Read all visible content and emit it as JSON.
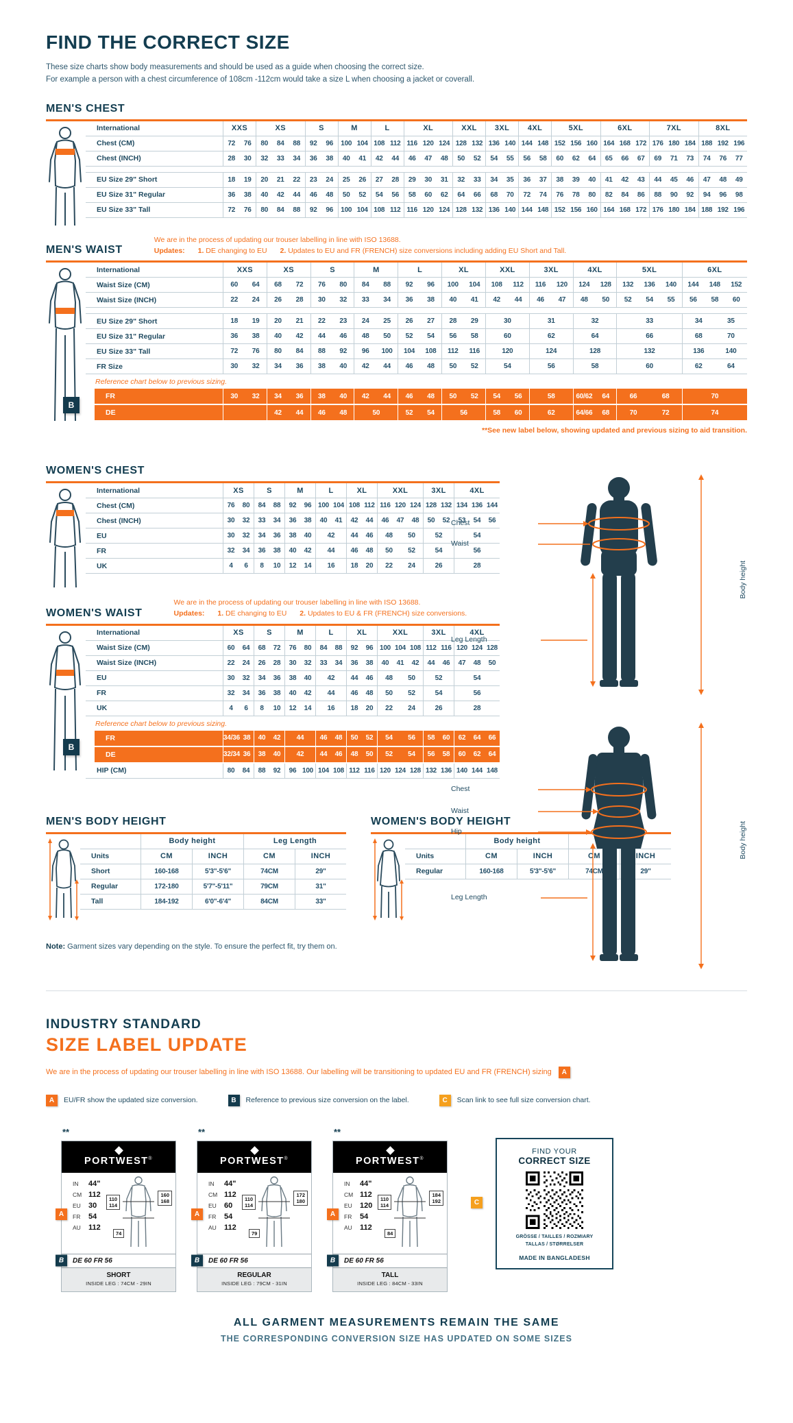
{
  "page": {
    "title": "FIND THE CORRECT SIZE",
    "intro1": "These size charts show body measurements and should be used as a guide when choosing the correct size.",
    "intro2": "For example a person with a chest circumference of 108cm -112cm would take a size L when choosing a jacket or coverall.",
    "note_label": "Note:",
    "note_text": " Garment sizes vary depending on the style. To ensure the perfect fit, try them on."
  },
  "colors": {
    "orange": "#f4701d",
    "navy": "#133d50",
    "amber": "#f5a01e"
  },
  "tables": {
    "mens_chest": {
      "title": "MEN'S CHEST",
      "spans": [
        2,
        3,
        2,
        2,
        2,
        3,
        2,
        2,
        2,
        3,
        3,
        3,
        3
      ],
      "header_rows": [
        {
          "label": "International",
          "cells": [
            "XXS",
            "XS",
            "S",
            "M",
            "L",
            "XL",
            "XXL",
            "3XL",
            "4XL",
            "5XL",
            "6XL",
            "7XL",
            "8XL"
          ]
        }
      ],
      "rows": [
        {
          "label": "Chest (CM)",
          "cells": [
            "72 76",
            "80 84 88",
            "92 96",
            "100 104",
            "108 112",
            "116 120 124",
            "128 132",
            "136 140",
            "144 148",
            "152 156 160",
            "164 168 172",
            "176 180 184",
            "188 192 196"
          ]
        },
        {
          "label": "Chest (INCH)",
          "cells": [
            "28 30",
            "32 33 34",
            "36 38",
            "40 41",
            "42 44",
            "46 47 48",
            "50 52",
            "54 55",
            "56 58",
            "60 62 64",
            "65 66 67",
            "69 71 73",
            "74 76 77"
          ]
        },
        {
          "gap": true
        },
        {
          "label": "EU Size 29\" Short",
          "cells": [
            "18 19",
            "20 21 22",
            "23 24",
            "25 26",
            "27 28",
            "29 30 31",
            "32 33",
            "34 35",
            "36 37",
            "38 39 40",
            "41 42 43",
            "44 45 46",
            "47 48 49"
          ]
        },
        {
          "label": "EU Size 31\" Regular",
          "cells": [
            "36 38",
            "40 42 44",
            "46 48",
            "50 52",
            "54 56",
            "58 60 62",
            "64 66",
            "68 70",
            "72 74",
            "76 78 80",
            "82 84 86",
            "88 90 92",
            "94 96 98"
          ]
        },
        {
          "label": "EU Size 33\" Tall",
          "cells": [
            "72 76",
            "80 84 88",
            "92 96",
            "100 104",
            "108 112",
            "116 120 124",
            "128 132",
            "136 140",
            "144 148",
            "152 156 160",
            "164 168 172",
            "176 180 184",
            "188 192 196"
          ]
        }
      ]
    },
    "mens_waist": {
      "title": "MEN'S WAIST",
      "note1": "We are in the process of updating our trouser labelling in line with ISO 13688.",
      "updates_label": "Updates:",
      "u1n": "1.",
      "u1": "DE changing to EU",
      "u2n": "2.",
      "u2": "Updates to EU and FR (FRENCH) size conversions including adding EU Short and Tall.",
      "spans": [
        2,
        2,
        2,
        2,
        2,
        2,
        2,
        2,
        2,
        3,
        3
      ],
      "header_rows": [
        {
          "label": "International",
          "cells": [
            "XXS",
            "XS",
            "S",
            "M",
            "L",
            "XL",
            "XXL",
            "3XL",
            "4XL",
            "5XL",
            "6XL"
          ]
        }
      ],
      "rows": [
        {
          "label": "Waist Size (CM)",
          "cells": [
            "60 64",
            "68 72",
            "76 80",
            "84 88",
            "92 96",
            "100 104",
            "108 112",
            "116 120",
            "124 128",
            "132 136 140",
            "144 148 152"
          ]
        },
        {
          "label": "Waist Size (INCH)",
          "cells": [
            "22 24",
            "26 28",
            "30 32",
            "33 34",
            "36 38",
            "40 41",
            "42 44",
            "46 47",
            "48 50",
            "52 54 55",
            "56 58 60"
          ]
        },
        {
          "gap": true
        },
        {
          "label": "EU Size 29\" Short",
          "cells": [
            "18 19",
            "20 21",
            "22 23",
            "24 25",
            "26 27",
            "28 29",
            "30",
            "31",
            "32",
            "33",
            "34 35"
          ]
        },
        {
          "label": "EU Size 31\" Regular",
          "cells": [
            "36 38",
            "40 42",
            "44 46",
            "48 50",
            "52 54",
            "56 58",
            "60",
            "62",
            "64",
            "66",
            "68 70"
          ]
        },
        {
          "label": "EU Size 33\" Tall",
          "cells": [
            "72 76",
            "80 84",
            "88 92",
            "96 100",
            "104 108",
            "112 116",
            "120",
            "124",
            "128",
            "132",
            "136 140"
          ]
        },
        {
          "label": "FR Size",
          "cells": [
            "30 32",
            "34 36",
            "38 40",
            "42 44",
            "46 48",
            "50 52",
            "54",
            "56",
            "58",
            "60",
            "62 64"
          ]
        },
        {
          "note": "Reference chart below to previous sizing."
        },
        {
          "label": "FR",
          "variant": "orange",
          "badge": "B",
          "cells": [
            "30 32",
            "34 36",
            "38 40",
            "42 44",
            "46 48",
            "50 52",
            "54 56",
            "58",
            "60/62 64",
            "66 68",
            "70"
          ]
        },
        {
          "label": "DE",
          "variant": "orange",
          "cells": [
            "",
            "42 44",
            "46 48",
            "50",
            "52 54",
            "56",
            "58 60",
            "62",
            "64/66 68",
            "70 72",
            "74"
          ]
        },
        {
          "footnote": "**See new label below, showing updated and previous sizing to aid transition."
        }
      ]
    },
    "womens_chest": {
      "title": "WOMEN'S CHEST",
      "spans": [
        2,
        2,
        2,
        2,
        2,
        3,
        2,
        3
      ],
      "header_rows": [
        {
          "label": "International",
          "cells": [
            "XS",
            "S",
            "M",
            "L",
            "XL",
            "XXL",
            "3XL",
            "4XL"
          ]
        }
      ],
      "rows": [
        {
          "label": "Chest (CM)",
          "cells": [
            "76 80",
            "84 88",
            "92 96",
            "100 104",
            "108 112",
            "116 120 124",
            "128 132",
            "134 136 144"
          ]
        },
        {
          "label": "Chest (INCH)",
          "cells": [
            "30 32",
            "33 34",
            "36 38",
            "40 41",
            "42 44",
            "46 47 48",
            "50 52",
            "53 54 56"
          ]
        },
        {
          "label": "EU",
          "cells": [
            "30 32",
            "34 36",
            "38 40",
            "42",
            "44 46",
            "48 50",
            "52",
            "54"
          ]
        },
        {
          "label": "FR",
          "cells": [
            "32 34",
            "36 38",
            "40 42",
            "44",
            "46 48",
            "50 52",
            "54",
            "56"
          ]
        },
        {
          "label": "UK",
          "cells": [
            "4 6",
            "8 10",
            "12 14",
            "16",
            "18 20",
            "22 24",
            "26",
            "28"
          ]
        }
      ]
    },
    "womens_waist": {
      "title": "WOMEN'S WAIST",
      "note1": "We are in the process of updating our trouser labelling in line with ISO 13688.",
      "updates_label": "Updates:",
      "u1n": "1.",
      "u1": "DE changing to EU",
      "u2n": "2.",
      "u2": "Updates to EU & FR (FRENCH) size conversions.",
      "spans": [
        2,
        2,
        2,
        2,
        2,
        3,
        2,
        3
      ],
      "header_rows": [
        {
          "label": "International",
          "cells": [
            "XS",
            "S",
            "M",
            "L",
            "XL",
            "XXL",
            "3XL",
            "4XL"
          ]
        }
      ],
      "rows": [
        {
          "label": "Waist Size (CM)",
          "cells": [
            "60 64",
            "68 72",
            "76 80",
            "84 88",
            "92 96",
            "100 104 108",
            "112 116",
            "120 124 128"
          ]
        },
        {
          "label": "Waist Size (INCH)",
          "cells": [
            "22 24",
            "26 28",
            "30 32",
            "33 34",
            "36 38",
            "40 41 42",
            "44 46",
            "47 48 50"
          ]
        },
        {
          "label": "EU",
          "cells": [
            "30 32",
            "34 36",
            "38 40",
            "42",
            "44 46",
            "48 50",
            "52",
            "54"
          ]
        },
        {
          "label": "FR",
          "cells": [
            "32 34",
            "36 38",
            "40 42",
            "44",
            "46 48",
            "50 52",
            "54",
            "56"
          ]
        },
        {
          "label": "UK",
          "cells": [
            "4 6",
            "8 10",
            "12 14",
            "16",
            "18 20",
            "22 24",
            "26",
            "28"
          ]
        },
        {
          "note": "Reference chart below to previous sizing."
        },
        {
          "label": "FR",
          "variant": "orange",
          "badge": "B",
          "cells": [
            "34/36 38",
            "40 42",
            "44",
            "46 48",
            "50 52",
            "54 56",
            "58 60",
            "62 64 66"
          ]
        },
        {
          "label": "DE",
          "variant": "orange",
          "cells": [
            "32/34 36",
            "38 40",
            "42",
            "44 46",
            "48 50",
            "52 54",
            "56 58",
            "60 62 64"
          ]
        },
        {
          "label": "HIP (CM)",
          "cells": [
            "80 84",
            "88 92",
            "96 100",
            "104 108",
            "112 116",
            "120 124 128",
            "132 136",
            "140 144 148"
          ]
        }
      ]
    },
    "mens_body_height": {
      "title": "MEN'S BODY HEIGHT",
      "spans": [
        1,
        1,
        1,
        1
      ],
      "header_rows": [
        {
          "label": "",
          "cells": [
            "Body height",
            "Leg Length"
          ],
          "spans": [
            2,
            2
          ],
          "nosplit": true
        },
        {
          "label": "Units",
          "cells": [
            "CM",
            "INCH",
            "CM",
            "INCH"
          ]
        }
      ],
      "rows": [
        {
          "label": "Short",
          "cells": [
            "160-168",
            "5'3\"-5'6\"",
            "74CM",
            "29\""
          ],
          "nosplit": true
        },
        {
          "label": "Regular",
          "cells": [
            "172-180",
            "5'7\"-5'11\"",
            "79CM",
            "31\""
          ],
          "nosplit": true
        },
        {
          "label": "Tall",
          "cells": [
            "184-192",
            "6'0\"-6'4\"",
            "84CM",
            "33\""
          ],
          "nosplit": true
        }
      ]
    },
    "womens_body_height": {
      "title": "WOMEN'S BODY HEIGHT",
      "spans": [
        1,
        1,
        1,
        1
      ],
      "header_rows": [
        {
          "label": "",
          "cells": [
            "Body height",
            "Leg Length"
          ],
          "spans": [
            2,
            2
          ],
          "nosplit": true
        },
        {
          "label": "Units",
          "cells": [
            "CM",
            "INCH",
            "CM",
            "INCH"
          ]
        }
      ],
      "rows": [
        {
          "label": "Regular",
          "cells": [
            "160-168",
            "5'3\"-5'6\"",
            "74CM",
            "29\""
          ],
          "nosplit": true
        }
      ]
    }
  },
  "figures": {
    "men": {
      "chest": "Chest",
      "waist": "Waist",
      "leg": "Leg Length",
      "height": "Body height"
    },
    "women": {
      "chest": "Chest",
      "waist": "Waist",
      "hip": "Hip",
      "leg": "Leg Length",
      "height": "Body height"
    }
  },
  "industry": {
    "kicker": "INDUSTRY STANDARD",
    "title": "SIZE LABEL UPDATE",
    "para": "We are in the process of updating our trouser labelling in line with ISO 13688. Our labelling will be transitioning to updated EU and FR (FRENCH) sizing",
    "para_badge": "A"
  },
  "legend": [
    {
      "badge": "A",
      "text": "EU/FR show the updated size conversion."
    },
    {
      "badge": "B",
      "text": "Reference to previous size conversion on the label."
    },
    {
      "badge": "C",
      "text": "Scan link to see full size conversion chart."
    }
  ],
  "cards": [
    {
      "marks": "**",
      "brand": "PORTWEST",
      "reg": "®",
      "badge_a": "A",
      "badge_b": "B",
      "m1l": "IN",
      "m1v": "44\"",
      "m2l": "CM",
      "m2v": "112",
      "m3l": "EU",
      "m3v": "30",
      "m4l": "FR",
      "m4v": "54",
      "m5l": "AU",
      "m5v": "112",
      "hip1": "110",
      "hip2": "114",
      "h1": "160",
      "h2": "168",
      "leg": "74",
      "prev": "DE 60 FR 56",
      "fit": "SHORT",
      "inside": "INSIDE LEG : 74CM - 29IN"
    },
    {
      "marks": "**",
      "brand": "PORTWEST",
      "reg": "®",
      "badge_a": "A",
      "badge_b": "B",
      "m1l": "IN",
      "m1v": "44\"",
      "m2l": "CM",
      "m2v": "112",
      "m3l": "EU",
      "m3v": "60",
      "m4l": "FR",
      "m4v": "54",
      "m5l": "AU",
      "m5v": "112",
      "hip1": "110",
      "hip2": "114",
      "h1": "172",
      "h2": "180",
      "leg": "79",
      "prev": "DE 60 FR 56",
      "fit": "REGULAR",
      "inside": "INSIDE LEG : 79CM - 31IN"
    },
    {
      "marks": "**",
      "brand": "PORTWEST",
      "reg": "®",
      "badge_a": "A",
      "badge_b": "B",
      "m1l": "IN",
      "m1v": "44\"",
      "m2l": "CM",
      "m2v": "112",
      "m3l": "EU",
      "m3v": "120",
      "m4l": "FR",
      "m4v": "54",
      "m5l": "AU",
      "m5v": "112",
      "hip1": "110",
      "hip2": "114",
      "h1": "184",
      "h2": "192",
      "leg": "84",
      "prev": "DE 60 FR 56",
      "fit": "TALL",
      "inside": "INSIDE LEG : 84CM - 33IN"
    }
  ],
  "qr_card": {
    "badge": "C",
    "line1": "FIND YOUR",
    "line2": "CORRECT SIZE",
    "langs1": "GRÖSSE / TAILLES / ROZMIARY",
    "langs2": "TALLAS / STØRRELSER",
    "origin": "MADE IN BANGLADESH"
  },
  "footer": {
    "line1": "ALL GARMENT MEASUREMENTS REMAIN THE SAME",
    "line2": "THE CORRESPONDING CONVERSION SIZE HAS UPDATED ON SOME SIZES"
  }
}
